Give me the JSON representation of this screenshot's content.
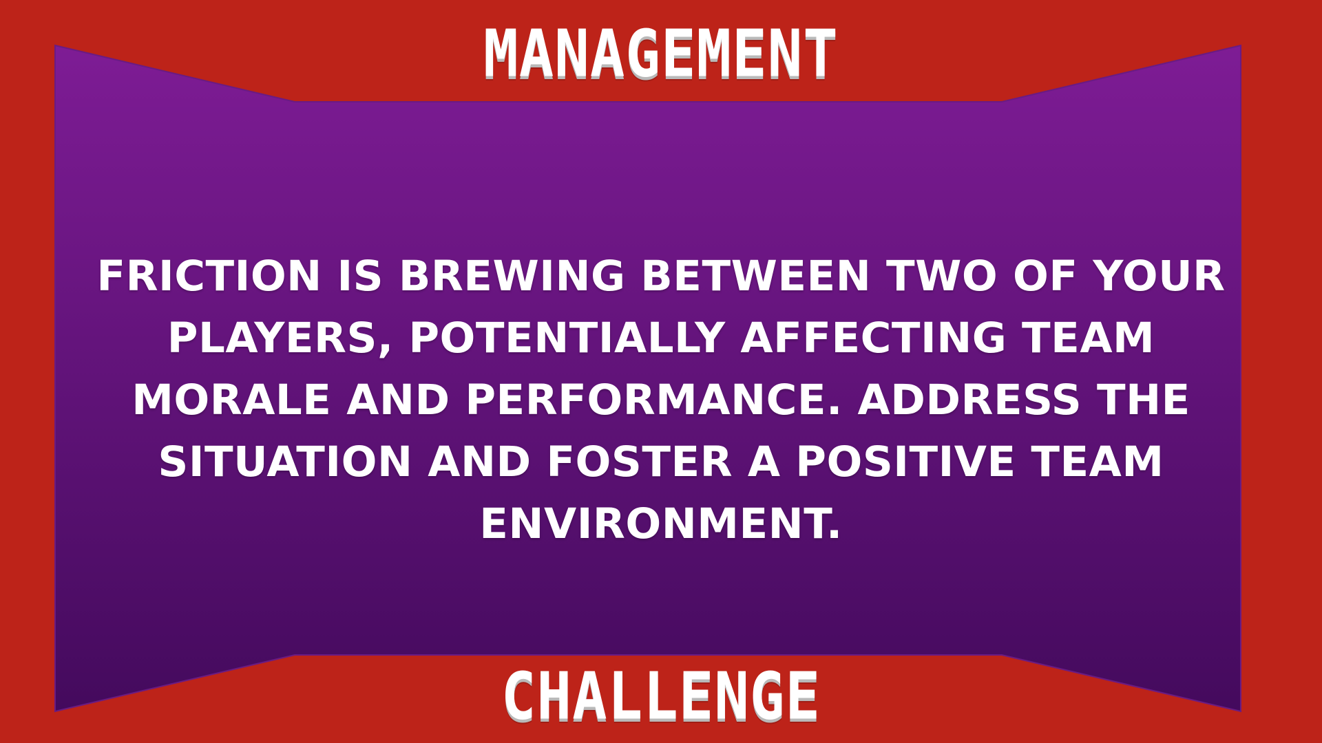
{
  "header": {
    "title": "MANAGEMENT"
  },
  "challenge": {
    "description": "FRICTION IS BREWING BETWEEN TWO OF YOUR PLAYERS, POTENTIALLY AFFECTING TEAM MORALE AND PERFORMANCE. ADDRESS THE SITUATION AND FOSTER A POSITIVE TEAM ENVIRONMENT."
  },
  "footer": {
    "title": "CHALLENGE"
  },
  "colors": {
    "frame": "#bd2319",
    "panel_top": "#7e1c95",
    "panel_bottom": "#440a5d",
    "text": "#ffffff"
  }
}
